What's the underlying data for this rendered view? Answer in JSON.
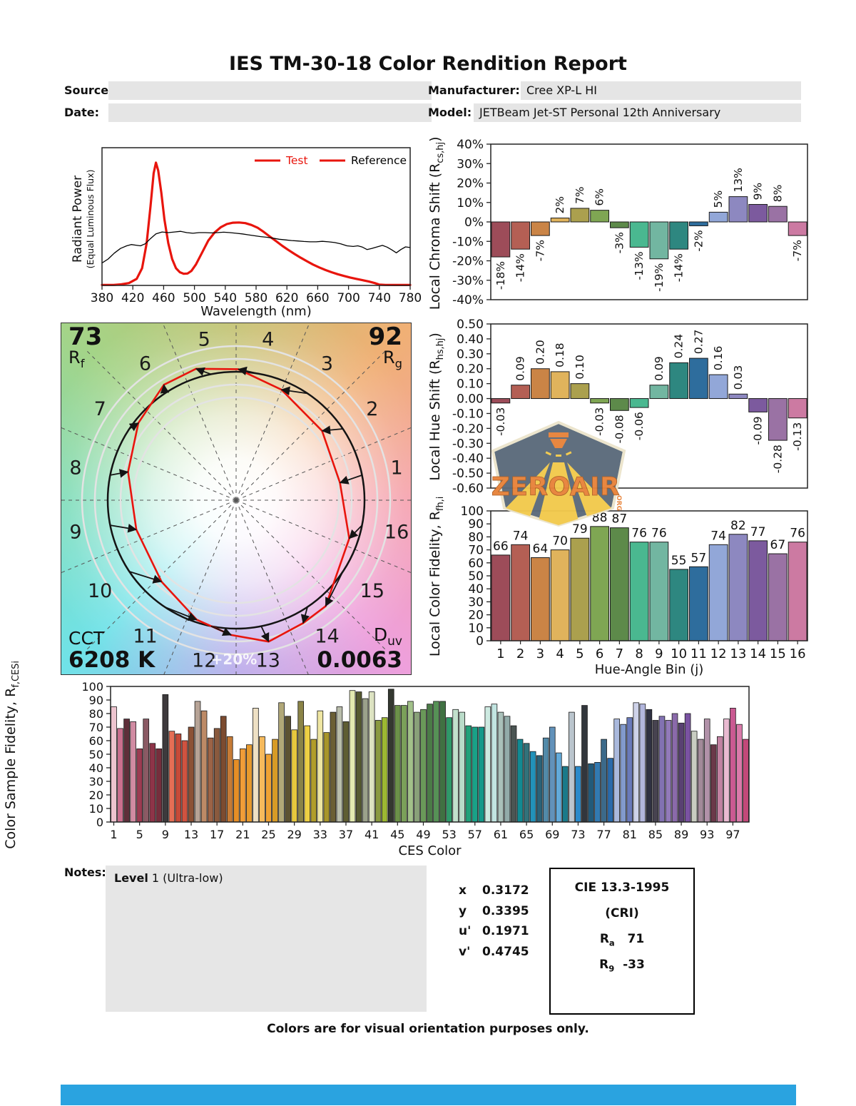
{
  "title": "IES TM-30-18 Color Rendition Report",
  "header": {
    "source_label": "Source:",
    "date_label": "Date:",
    "manufacturer_label": "Manufacturer:",
    "manufacturer_value": "Cree XP-L HI",
    "model_label": "Model:",
    "model_value": "JETBeam Jet-ST Personal 12th Anniversary"
  },
  "chart_data": [
    {
      "id": "spd",
      "type": "line",
      "xlabel": "Wavelength (nm)",
      "ylabel_line1": "Radiant Power",
      "ylabel_line2": "(Equal Luminous Flux)",
      "xlim": [
        380,
        780
      ],
      "xticks": [
        380,
        420,
        460,
        500,
        540,
        580,
        620,
        660,
        700,
        740,
        780
      ],
      "ylim": [
        0,
        1
      ],
      "legend": [
        {
          "name": "Test",
          "swatch_color": "#e8150d",
          "text_color": "#e8150d"
        },
        {
          "name": "Reference",
          "swatch_color": "#e8150d",
          "text_color": "#000000"
        }
      ],
      "series": [
        {
          "name": "Test",
          "color": "#e8150d",
          "width": 3.2,
          "points": [
            [
              380,
              0.004
            ],
            [
              395,
              0.004
            ],
            [
              405,
              0.008
            ],
            [
              415,
              0.018
            ],
            [
              425,
              0.05
            ],
            [
              432,
              0.13
            ],
            [
              438,
              0.32
            ],
            [
              443,
              0.6
            ],
            [
              447,
              0.85
            ],
            [
              450,
              0.93
            ],
            [
              453,
              0.87
            ],
            [
              457,
              0.7
            ],
            [
              461,
              0.5
            ],
            [
              466,
              0.32
            ],
            [
              471,
              0.2
            ],
            [
              476,
              0.13
            ],
            [
              481,
              0.1
            ],
            [
              486,
              0.088
            ],
            [
              491,
              0.09
            ],
            [
              496,
              0.11
            ],
            [
              502,
              0.16
            ],
            [
              510,
              0.25
            ],
            [
              518,
              0.34
            ],
            [
              526,
              0.4
            ],
            [
              534,
              0.44
            ],
            [
              542,
              0.465
            ],
            [
              550,
              0.475
            ],
            [
              558,
              0.477
            ],
            [
              566,
              0.472
            ],
            [
              574,
              0.458
            ],
            [
              582,
              0.437
            ],
            [
              590,
              0.405
            ],
            [
              598,
              0.37
            ],
            [
              606,
              0.335
            ],
            [
              614,
              0.3
            ],
            [
              622,
              0.268
            ],
            [
              630,
              0.238
            ],
            [
              638,
              0.21
            ],
            [
              646,
              0.183
            ],
            [
              654,
              0.158
            ],
            [
              662,
              0.136
            ],
            [
              670,
              0.117
            ],
            [
              678,
              0.1
            ],
            [
              686,
              0.085
            ],
            [
              694,
              0.072
            ],
            [
              702,
              0.06
            ],
            [
              710,
              0.05
            ],
            [
              718,
              0.04
            ],
            [
              726,
              0.03
            ],
            [
              734,
              0.018
            ],
            [
              740,
              0.006
            ],
            [
              748,
              0.004
            ],
            [
              760,
              0.003
            ],
            [
              780,
              0.003
            ]
          ]
        },
        {
          "name": "Reference",
          "color": "#000000",
          "width": 1.3,
          "points": [
            [
              380,
              0.17
            ],
            [
              388,
              0.2
            ],
            [
              396,
              0.245
            ],
            [
              404,
              0.28
            ],
            [
              412,
              0.3
            ],
            [
              418,
              0.31
            ],
            [
              424,
              0.305
            ],
            [
              430,
              0.3
            ],
            [
              436,
              0.315
            ],
            [
              442,
              0.35
            ],
            [
              450,
              0.39
            ],
            [
              458,
              0.405
            ],
            [
              466,
              0.4
            ],
            [
              474,
              0.405
            ],
            [
              482,
              0.41
            ],
            [
              490,
              0.4
            ],
            [
              498,
              0.395
            ],
            [
              506,
              0.4
            ],
            [
              514,
              0.4
            ],
            [
              522,
              0.398
            ],
            [
              530,
              0.4
            ],
            [
              538,
              0.403
            ],
            [
              546,
              0.4
            ],
            [
              554,
              0.395
            ],
            [
              562,
              0.39
            ],
            [
              570,
              0.383
            ],
            [
              578,
              0.376
            ],
            [
              586,
              0.37
            ],
            [
              594,
              0.365
            ],
            [
              602,
              0.358
            ],
            [
              610,
              0.35
            ],
            [
              618,
              0.345
            ],
            [
              626,
              0.34
            ],
            [
              634,
              0.337
            ],
            [
              642,
              0.333
            ],
            [
              650,
              0.33
            ],
            [
              658,
              0.33
            ],
            [
              666,
              0.334
            ],
            [
              674,
              0.33
            ],
            [
              682,
              0.325
            ],
            [
              690,
              0.315
            ],
            [
              698,
              0.3
            ],
            [
              706,
              0.295
            ],
            [
              712,
              0.3
            ],
            [
              718,
              0.29
            ],
            [
              724,
              0.272
            ],
            [
              730,
              0.28
            ],
            [
              738,
              0.293
            ],
            [
              744,
              0.303
            ],
            [
              750,
              0.29
            ],
            [
              756,
              0.27
            ],
            [
              762,
              0.247
            ],
            [
              768,
              0.272
            ],
            [
              774,
              0.292
            ],
            [
              780,
              0.287
            ]
          ]
        }
      ]
    },
    {
      "id": "chroma",
      "type": "bar",
      "ylabel_pre": "Local Chroma Shift (R",
      "ylabel_sub": "cs,hj",
      "ylabel_post": ")",
      "ylim": [
        -40,
        40
      ],
      "ytick_step": 10,
      "ytick_suffix": "%",
      "categories": [
        "1",
        "2",
        "3",
        "4",
        "5",
        "6",
        "7",
        "8",
        "9",
        "10",
        "11",
        "12",
        "13",
        "14",
        "15",
        "16"
      ],
      "values": [
        -18,
        -14,
        -7,
        2,
        7,
        6,
        -3,
        -13,
        -19,
        -14,
        -2,
        5,
        13,
        9,
        8,
        -7
      ],
      "labels": [
        "-18%",
        "-14%",
        "-7%",
        "2%",
        "7%",
        "6%",
        "-3%",
        "-13%",
        "-19%",
        "-14%",
        "-2%",
        "5%",
        "13%",
        "9%",
        "8%",
        "-7%"
      ],
      "colors": [
        "#9d4c59",
        "#b45f54",
        "#ca8446",
        "#e0b35c",
        "#aba04e",
        "#7fa653",
        "#5d8a4a",
        "#4ab890",
        "#72b6a1",
        "#2e8780",
        "#2e6d9d",
        "#92a7d8",
        "#8d88c0",
        "#7c5a9e",
        "#9a72a4",
        "#cc7aa2"
      ]
    },
    {
      "id": "hue",
      "type": "bar",
      "ylabel_pre": "Local Hue Shift (R",
      "ylabel_sub": "hs,hj",
      "ylabel_post": ")",
      "ylim": [
        -0.6,
        0.5
      ],
      "ytick_step": 0.1,
      "categories": [
        "1",
        "2",
        "3",
        "4",
        "5",
        "6",
        "7",
        "8",
        "9",
        "10",
        "11",
        "12",
        "13",
        "14",
        "15",
        "16"
      ],
      "values": [
        -0.03,
        0.09,
        0.2,
        0.18,
        0.1,
        -0.03,
        -0.08,
        -0.06,
        0.09,
        0.24,
        0.27,
        0.16,
        0.03,
        -0.09,
        -0.28,
        -0.13
      ],
      "labels": [
        "-0.03",
        "0.09",
        "0.20",
        "0.18",
        "0.10",
        "-0.03",
        "-0.08",
        "-0.06",
        "0.09",
        "0.24",
        "0.27",
        "0.16",
        "0.03",
        "-0.09",
        "-0.28",
        "-0.13"
      ],
      "colors": [
        "#9d4c59",
        "#b45f54",
        "#ca8446",
        "#e0b35c",
        "#aba04e",
        "#7fa653",
        "#5d8a4a",
        "#4ab890",
        "#72b6a1",
        "#2e8780",
        "#2e6d9d",
        "#92a7d8",
        "#8d88c0",
        "#7c5a9e",
        "#9a72a4",
        "#cc7aa2"
      ]
    },
    {
      "id": "fidelity",
      "type": "bar",
      "ylabel_pre": "Local Color Fidelity, R",
      "ylabel_sub": "fh,i",
      "ylabel_post": "",
      "xlabel": "Hue-Angle Bin (j)",
      "ylim": [
        0,
        100
      ],
      "ytick_step": 10,
      "categories": [
        "1",
        "2",
        "3",
        "4",
        "5",
        "6",
        "7",
        "8",
        "9",
        "10",
        "11",
        "12",
        "13",
        "14",
        "15",
        "16"
      ],
      "values": [
        66,
        74,
        64,
        70,
        79,
        88,
        87,
        76,
        76,
        55,
        57,
        74,
        82,
        77,
        67,
        76
      ],
      "colors": [
        "#9d4c59",
        "#b45f54",
        "#ca8446",
        "#e0b35c",
        "#aba04e",
        "#7fa653",
        "#5d8a4a",
        "#4ab890",
        "#72b6a1",
        "#2e8780",
        "#2e6d9d",
        "#92a7d8",
        "#8d88c0",
        "#7c5a9e",
        "#9a72a4",
        "#cc7aa2"
      ]
    },
    {
      "id": "ces",
      "type": "bar",
      "ylabel_pre": "Color Sample Fidelity, R",
      "ylabel_sub": "f,CESi",
      "ylabel_post": "",
      "xlabel": "CES Color",
      "ylim": [
        0,
        100
      ],
      "ytick_step": 10,
      "xticks": [
        1,
        5,
        9,
        13,
        17,
        21,
        25,
        29,
        33,
        37,
        41,
        45,
        49,
        53,
        57,
        61,
        65,
        69,
        73,
        77,
        81,
        85,
        89,
        93,
        97
      ],
      "values": [
        85,
        69,
        76,
        74,
        54,
        76,
        58,
        54,
        94,
        67,
        65,
        60,
        70,
        89,
        82,
        62,
        69,
        78,
        63,
        46,
        54,
        57,
        84,
        63,
        50,
        61,
        88,
        78,
        68,
        89,
        71,
        61,
        82,
        66,
        81,
        85,
        74,
        97,
        96,
        91,
        96,
        75,
        77,
        98,
        86,
        86,
        89,
        81,
        83,
        87,
        89,
        89,
        77,
        83,
        81,
        71,
        70,
        70,
        85,
        87,
        81,
        78,
        71,
        61,
        58,
        52,
        49,
        62,
        70,
        51,
        41,
        81,
        41,
        86,
        43,
        44,
        61,
        47,
        76,
        72,
        77,
        88,
        87,
        83,
        75,
        78,
        75,
        80,
        73,
        80,
        67,
        61,
        76,
        57,
        63,
        76,
        84,
        72,
        61
      ],
      "colors": [
        "#edc4cf",
        "#ca6f8e",
        "#5e2f3a",
        "#d18ba2",
        "#9c3b52",
        "#8b5a64",
        "#8e3448",
        "#762e3c",
        "#3d3a3c",
        "#e56e55",
        "#c64a38",
        "#d05340",
        "#8c5236",
        "#b7a396",
        "#bd8a66",
        "#9c6346",
        "#8a5a3e",
        "#7c4b30",
        "#c67b36",
        "#e68e26",
        "#f19d38",
        "#e89a2c",
        "#eee0c4",
        "#f6ba5c",
        "#efa233",
        "#d79b26",
        "#b1a878",
        "#5c5232",
        "#e6c83e",
        "#8b8447",
        "#eed044",
        "#b19d2a",
        "#efe6a2",
        "#a8952b",
        "#6b5f35",
        "#b9bdab",
        "#5f5d33",
        "#e3eab0",
        "#565a30",
        "#9ba18b",
        "#dde3c2",
        "#8a9a41",
        "#9cb832",
        "#343830",
        "#6b9149",
        "#7ba15a",
        "#a2c189",
        "#89a179",
        "#6a9959",
        "#4b7b47",
        "#569156",
        "#407142",
        "#2f9a6a",
        "#c2e1cd",
        "#badcc9",
        "#22a17a",
        "#19a187",
        "#14998a",
        "#cdeae1",
        "#c2e5e1",
        "#aac1ba",
        "#92aba9",
        "#4b5553",
        "#128a92",
        "#32727a",
        "#2292ba",
        "#2a6279",
        "#528aa9",
        "#6292ba",
        "#62aada",
        "#1a7a8a",
        "#bac5cd",
        "#2a8aca",
        "#32363c",
        "#225a7a",
        "#327ab2",
        "#3c6a8a",
        "#2a6aaa",
        "#aab9dd",
        "#829acd",
        "#6a7aba",
        "#ced2e9",
        "#b2b6dd",
        "#2f3142",
        "#474350",
        "#8272b2",
        "#927ab9",
        "#8a6aaa",
        "#594172",
        "#7a52a2",
        "#c9cdc1",
        "#a28a99",
        "#b292a9",
        "#6a3949",
        "#c282a2",
        "#e9bad1",
        "#ca5a92",
        "#da7aaa",
        "#c24979"
      ]
    }
  ],
  "cvg": {
    "rf_value": "73",
    "rf_base": "R",
    "rf_sub": "f",
    "rg_value": "92",
    "rg_base": "R",
    "rg_sub": "g",
    "cct_label": "CCT",
    "cct_value": "6208 K",
    "duv_base": "D",
    "duv_sub": "uv",
    "duv_value": "0.0063",
    "ring_label": "+20%",
    "bin_labels": [
      "1",
      "2",
      "3",
      "4",
      "5",
      "6",
      "7",
      "8",
      "9",
      "10",
      "11",
      "12",
      "13",
      "14",
      "15",
      "16"
    ],
    "test_color": "#e8150d",
    "reference_color": "#141414"
  },
  "notes": {
    "label": "Notes:",
    "line_bold": "Level",
    "line_rest": " 1 (Ultra-low)"
  },
  "cie": {
    "rows": [
      {
        "label": "x",
        "value": "0.3172"
      },
      {
        "label": "y",
        "value": "0.3395"
      },
      {
        "label": "u'",
        "value": "0.1971"
      },
      {
        "label": "v'",
        "value": "0.4745"
      }
    ]
  },
  "cri_box": {
    "title": "CIE 13.3-1995",
    "subtitle": "(CRI)",
    "ra_base": "R",
    "ra_sub": "a",
    "ra_value": "71",
    "r9_base": "R",
    "r9_sub": "9",
    "r9_value": "-33"
  },
  "footer": {
    "text": "Colors are for visual orientation purposes only."
  },
  "logo": {
    "text": "ZEROAIR",
    "org": "ORG"
  },
  "colors": {
    "accent_bar": "#2aa3e0",
    "box_gray": "#e5e5e5",
    "test_red": "#e8150d"
  }
}
